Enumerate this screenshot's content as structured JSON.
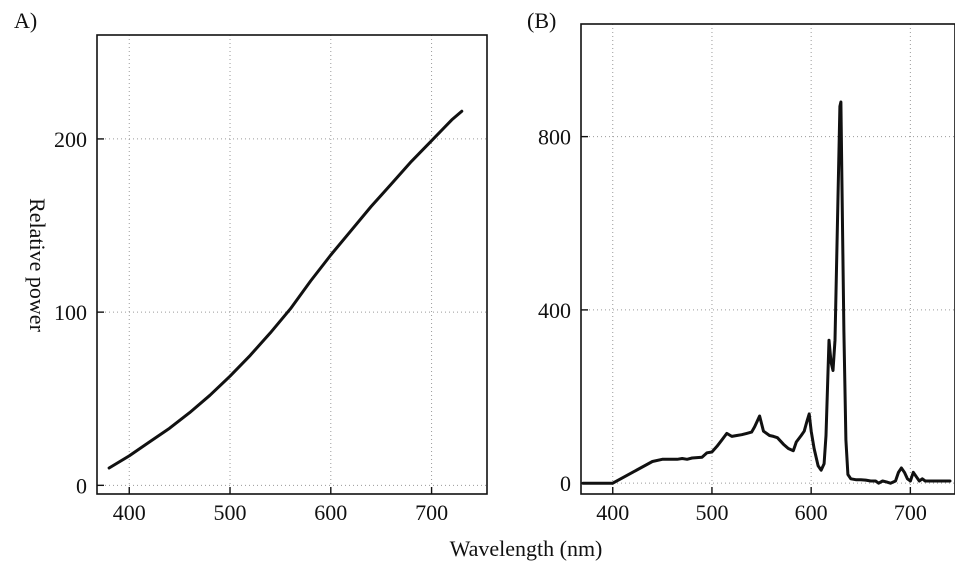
{
  "chart_data": [
    {
      "type": "line",
      "panel_label": "A)",
      "ylabel": "Relative power",
      "xlim": [
        368,
        755
      ],
      "ylim": [
        -5,
        260
      ],
      "xticks": [
        400,
        500,
        600,
        700
      ],
      "yticks": [
        0,
        100,
        200
      ],
      "grid": true,
      "series": [
        {
          "x": [
            380,
            400,
            420,
            440,
            460,
            480,
            500,
            520,
            540,
            560,
            580,
            600,
            620,
            640,
            660,
            680,
            700,
            720,
            730
          ],
          "y": [
            10,
            17,
            25,
            33,
            42,
            52,
            63,
            75,
            88,
            102,
            118,
            133,
            147,
            161,
            174,
            187,
            199,
            211,
            216
          ]
        }
      ]
    },
    {
      "type": "line",
      "panel_label": "(B)",
      "ylabel": "",
      "xlim": [
        368,
        745
      ],
      "ylim": [
        -25,
        1060
      ],
      "xticks": [
        400,
        500,
        600,
        700
      ],
      "yticks": [
        0,
        400,
        800
      ],
      "grid": true,
      "series": [
        {
          "x": [
            370,
            400,
            420,
            440,
            450,
            465,
            470,
            475,
            480,
            490,
            495,
            500,
            505,
            510,
            515,
            520,
            525,
            530,
            535,
            540,
            543,
            548,
            552,
            558,
            562,
            566,
            572,
            577,
            582,
            585,
            590,
            593,
            596,
            598,
            600,
            603,
            607,
            610,
            613,
            615,
            618,
            620,
            622,
            624,
            627,
            629,
            630,
            631,
            633,
            635,
            637,
            640,
            645,
            650,
            655,
            660,
            665,
            668,
            672,
            676,
            680,
            685,
            688,
            691,
            694,
            697,
            700,
            703,
            706,
            709,
            712,
            715,
            720,
            730,
            740
          ],
          "y": [
            0,
            0,
            25,
            50,
            55,
            55,
            57,
            55,
            58,
            60,
            70,
            72,
            85,
            100,
            115,
            108,
            110,
            112,
            115,
            118,
            130,
            155,
            120,
            110,
            108,
            105,
            90,
            80,
            75,
            95,
            110,
            120,
            145,
            160,
            120,
            80,
            40,
            30,
            45,
            110,
            330,
            280,
            260,
            330,
            650,
            870,
            880,
            700,
            350,
            100,
            20,
            10,
            8,
            8,
            7,
            5,
            5,
            0,
            5,
            3,
            0,
            5,
            25,
            35,
            25,
            10,
            5,
            25,
            15,
            5,
            10,
            5,
            5,
            5,
            5
          ]
        }
      ]
    }
  ],
  "shared": {
    "xlabel": "Wavelength (nm)"
  }
}
